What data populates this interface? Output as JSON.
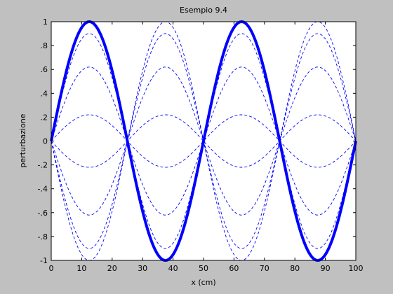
{
  "figure": {
    "background": "#c0c0c0",
    "axes_background": "#ffffff",
    "line_color": "#0000ff"
  },
  "chart_data": {
    "type": "line",
    "title": "Esempio 9.4",
    "xlabel": "x (cm)",
    "ylabel": "perturbazione",
    "xlim": [
      0,
      100
    ],
    "ylim": [
      -1,
      1
    ],
    "xticks": [
      0,
      10,
      20,
      30,
      40,
      50,
      60,
      70,
      80,
      90,
      100
    ],
    "yticks": [
      -1,
      -0.8,
      -0.6,
      -0.4,
      -0.2,
      0,
      0.2,
      0.4,
      0.6,
      0.8,
      1
    ],
    "grid": false,
    "function": "A * sin(2*pi*x/50), wavelength 50 cm",
    "series": [
      {
        "amplitude": 1.0,
        "style": "solid-thick",
        "color": "#0000ff"
      },
      {
        "amplitude": 1.0,
        "style": "dashed",
        "color": "#0000ff"
      },
      {
        "amplitude": 0.9,
        "style": "dashed",
        "color": "#0000ff"
      },
      {
        "amplitude": 0.62,
        "style": "dashed",
        "color": "#0000ff"
      },
      {
        "amplitude": 0.22,
        "style": "dashed",
        "color": "#0000ff"
      },
      {
        "amplitude": -0.22,
        "style": "dashed",
        "color": "#0000ff"
      },
      {
        "amplitude": -0.62,
        "style": "dashed",
        "color": "#0000ff"
      },
      {
        "amplitude": -0.9,
        "style": "dashed",
        "color": "#0000ff"
      },
      {
        "amplitude": -1.0,
        "style": "dashed",
        "color": "#0000ff"
      }
    ]
  }
}
